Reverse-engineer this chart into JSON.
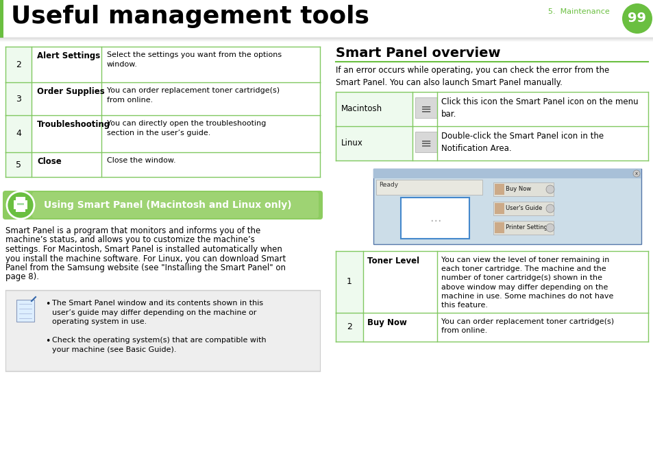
{
  "title": "Useful management tools",
  "page_number": "99",
  "chapter": "5.  Maintenance",
  "green": "#6abf40",
  "table_border": "#80c860",
  "left_col_bg": "#eefaee",
  "rows_left": [
    {
      "num": "2",
      "label": "Alert Settings",
      "desc": "Select the settings you want from the options\nwindow."
    },
    {
      "num": "3",
      "label": "Order Supplies",
      "desc": "You can order replacement toner cartridge(s)\nfrom online."
    },
    {
      "num": "4",
      "label": "Troubleshooting",
      "desc": "You can directly open the troubleshooting\nsection in the user’s guide."
    },
    {
      "num": "5",
      "label": "Close",
      "desc": "Close the window."
    }
  ],
  "banner_text": "Using Smart Panel (Macintosh and Linux only)",
  "body_lines": [
    "Smart Panel is a program that monitors and informs you of the",
    "machine’s status, and allows you to customize the machine’s",
    "settings. For Macintosh, Smart Panel is installed automatically when",
    "you install the machine software. For Linux, you can download Smart",
    "Panel from the Samsung website (see \"Installing the Smart Panel\" on",
    "page 8)."
  ],
  "note_bullets": [
    "The Smart Panel window and its contents shown in this\nuser’s guide may differ depending on the machine or\noperating system in use.",
    "Check the operating system(s) that are compatible with\nyour machine (see Basic Guide)."
  ],
  "right_title": "Smart Panel overview",
  "right_intro": "If an error occurs while operating, you can check the error from the\nSmart Panel. You can also launch Smart Panel manually.",
  "os_rows": [
    {
      "label": "Macintosh",
      "desc": "Click this icon the Smart Panel icon on the menu\nbar."
    },
    {
      "label": "Linux",
      "desc": "Double-click the Smart Panel icon in the\nNotification Area."
    }
  ],
  "bottom_rows": [
    {
      "num": "1",
      "label": "Toner Level",
      "desc": "You can view the level of toner remaining in\neach toner cartridge. The machine and the\nnumber of toner cartridge(s) shown in the\nabove window may differ depending on the\nmachine in use. Some machines do not have\nthis feature."
    },
    {
      "num": "2",
      "label": "Buy Now",
      "desc": "You can order replacement toner cartridge(s)\nfrom online."
    }
  ],
  "screenshot": {
    "ready_text": "Ready",
    "buttons": [
      "Buy Now",
      "User's Guide",
      "Printer Setting"
    ]
  }
}
